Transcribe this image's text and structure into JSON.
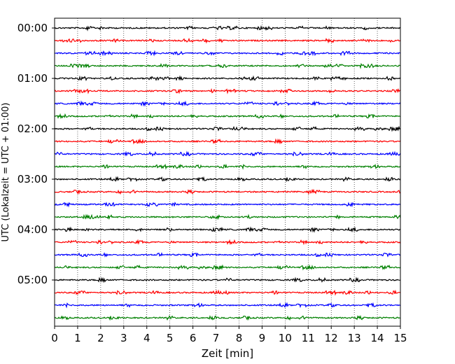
{
  "chart_data": {
    "type": "line",
    "title": "",
    "xlabel": "Zeit  [min]",
    "ylabel": "UTC (Lokalzeit = UTC + 01:00)",
    "xlim": [
      0,
      15
    ],
    "x_ticks": [
      "0",
      "1",
      "2",
      "3",
      "4",
      "5",
      "6",
      "7",
      "8",
      "9",
      "10",
      "11",
      "12",
      "13",
      "14",
      "15"
    ],
    "y_tick_labels": [
      "00:00",
      "01:00",
      "02:00",
      "03:00",
      "04:00",
      "05:00"
    ],
    "grid": "vertical dotted lines at each minute",
    "trace_interval_minutes": 15,
    "trace_count": 24,
    "trace_colors": [
      "#000000",
      "#ff0000",
      "#0000ff",
      "#008000"
    ],
    "trace_start_times": [
      "00:00",
      "00:15",
      "00:30",
      "00:45",
      "01:00",
      "01:15",
      "01:30",
      "01:45",
      "02:00",
      "02:15",
      "02:30",
      "02:45",
      "03:00",
      "03:15",
      "03:30",
      "03:45",
      "04:00",
      "04:15",
      "04:30",
      "04:45",
      "05:00",
      "05:15",
      "05:30",
      "05:45"
    ]
  }
}
